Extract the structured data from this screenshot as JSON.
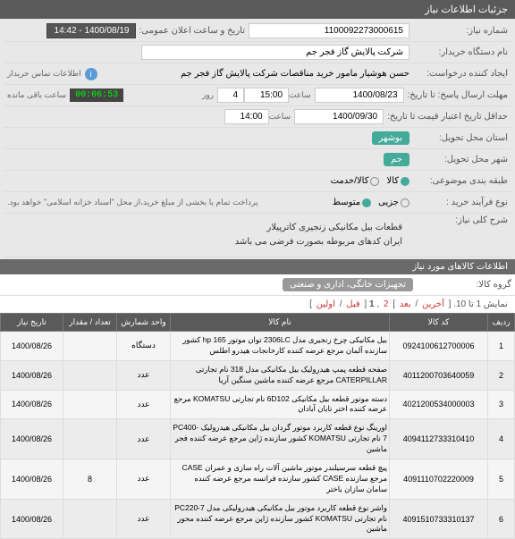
{
  "header": {
    "title": "جزئیات اطلاعات نیاز"
  },
  "fields": {
    "need_no_label": "شماره نیاز:",
    "need_no": "1100092273000615",
    "announce_label": "تاریخ و ساعت اعلان عمومی:",
    "announce_value": "1400/08/19 - 14:42",
    "buyer_org_label": "نام دستگاه خریدار:",
    "buyer_org": "شرکت پالایش گاز فجر جم",
    "requester_label": "ایجاد کننده درخواست:",
    "requester": "حسن هوشیار مامور خرید مناقصات شرکت پالایش گاز فجر جم",
    "contact_label": "اطلاعات تماس خریدار",
    "deadline_label": "مهلت ارسال پاسخ: تا تاریخ:",
    "deadline_date": "1400/08/23",
    "time_label": "ساعت",
    "deadline_time": "15:00",
    "days_label": "روز",
    "days": "4",
    "remaining_label": "ساعت باقی مانده",
    "remaining": "00:06:53",
    "validity_label": "حداقل تاریخ اعتبار قیمت تا تاریخ:",
    "validity_date": "1400/09/30",
    "validity_time": "14:00",
    "province_label": "استان محل تحویل:",
    "province": "بوشهر",
    "city_label": "شهر محل تحویل:",
    "city": "جم",
    "item_type_label": "طبقه بندی موضوعی:",
    "item_goods": "کالا",
    "item_service": "کالا/خدمت",
    "process_label": "نوع فرآیند خرید :",
    "proc_small": "جزیی",
    "proc_mid": "متوسط",
    "payment_note": "پرداخت تمام یا بخشی از مبلغ خرید،از محل \"اسناد خزانه اسلامی\" خواهد بود.",
    "desc_label": "شرح کلی نیاز:",
    "desc_line1": "قطعات بیل مکانیکی زنجیری کاترپیلار",
    "desc_line2": "ایران کدهای مربوطه بصورت فرضی می باشد"
  },
  "goods_section": {
    "title": "اطلاعات کالاهای مورد نیاز",
    "group_label": "گروه کالا:",
    "group_value": "تجهیزات خانگی، اداری و صنعتی"
  },
  "pager": {
    "summary": "نمایش 1 تا 10.",
    "last": "آخرین",
    "next": "بعد",
    "p2": "2",
    "p1": "1",
    "prev": "قبل",
    "first": "اولین"
  },
  "table": {
    "headers": {
      "row": "ردیف",
      "code": "کد کالا",
      "name": "نام کالا",
      "unit": "واحد شمارش",
      "qty": "تعداد / مقدار",
      "date": "تاریخ نیاز"
    },
    "rows": [
      {
        "n": "1",
        "code": "0924100612700006",
        "name": "بیل مکانیکی چرخ زنجیری مدل 2306LC توان موتور 165 hp کشور سازنده آلمان مرجع عرضه کننده کارخانجات هیدرو اطلس",
        "unit": "دستگاه",
        "qty": "",
        "date": "1400/08/26"
      },
      {
        "n": "2",
        "code": "4011200703640059",
        "name": "صفحه قطعه پمپ هیدرولیک بیل مکانیکی مدل 318 نام تجارتی CATERPILLAR مرجع عرضه کننده ماشین سنگین آریا",
        "unit": "عدد",
        "qty": "",
        "date": "1400/08/26"
      },
      {
        "n": "3",
        "code": "4021200534000003",
        "name": "دسته موتور قطعه بیل مکانیکی 6D102 نام تجارتی KOMATSU مرجع عرضه کننده اختر تابان آبادان",
        "unit": "عدد",
        "qty": "",
        "date": "1400/08/26"
      },
      {
        "n": "4",
        "code": "4094112733310410",
        "name": "اورینگ نوع قطعه کاربرد موتور گردان بیل مکانیکی هیدرولیک PC400-7 نام تجارتی KOMATSU کشور سازنده ژاپن مرجع عرضه کننده فجر ماشین",
        "unit": "عدد",
        "qty": "",
        "date": "1400/08/26"
      },
      {
        "n": "5",
        "code": "4091110702220009",
        "name": "پیچ قطعه سرسیلندر موتور ماشین آلات راه سازی و عمران CASE مرجع سازنده CASE کشور سازنده فرانسه مرجع عرضه کننده سامان سازان باختر",
        "unit": "عدد",
        "qty": "8",
        "date": "1400/08/26"
      },
      {
        "n": "6",
        "code": "4091510733310137",
        "name": "واشر نوع قطعه کاربرد موتور بیل مکانیکی هیدرولیکی مدل PC220-7 نام تجارتی KOMATSU کشور سازنده ژاپن مرجع عرضه کننده محور ماشین",
        "unit": "عدد",
        "qty": "",
        "date": "1400/08/26"
      }
    ]
  }
}
